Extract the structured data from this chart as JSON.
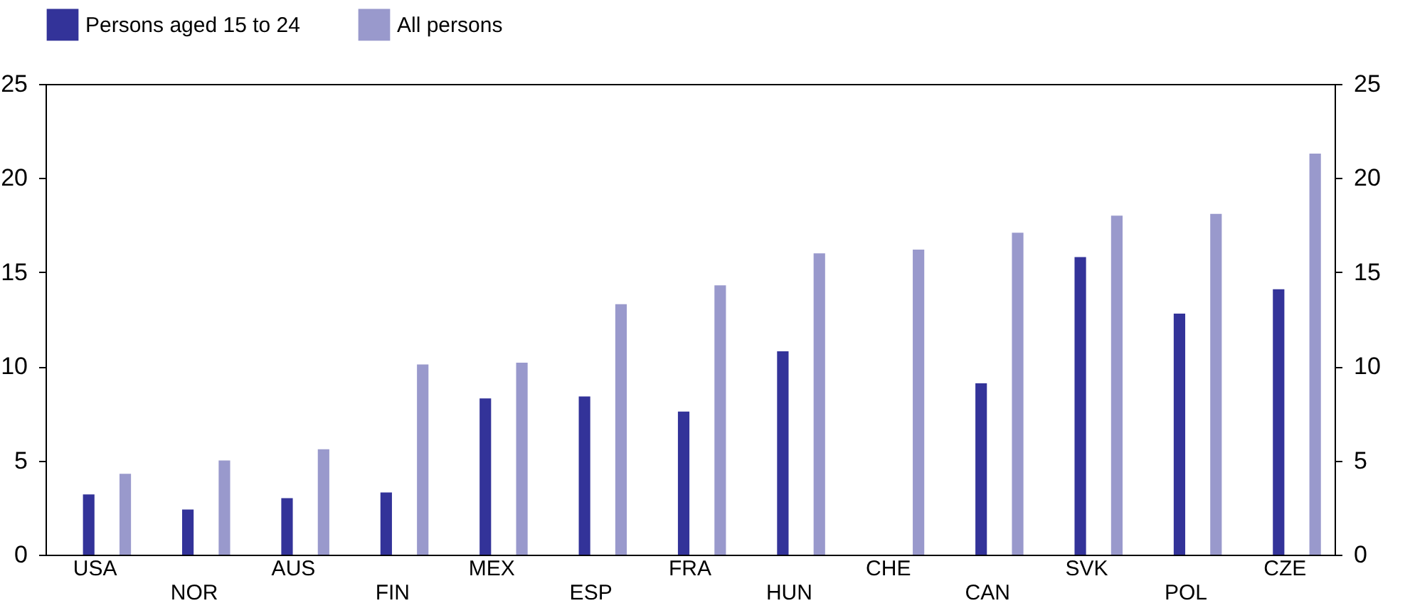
{
  "chart_data": {
    "type": "bar",
    "categories": [
      "USA",
      "NOR",
      "AUS",
      "FIN",
      "MEX",
      "ESP",
      "FRA",
      "HUN",
      "CHE",
      "CAN",
      "SVK",
      "POL",
      "CZE"
    ],
    "series": [
      {
        "name": "Persons aged 15 to 24",
        "color": "#333399",
        "values": [
          3.2,
          2.4,
          3.0,
          3.3,
          8.3,
          8.4,
          7.6,
          10.8,
          null,
          9.1,
          15.8,
          12.8,
          14.1
        ]
      },
      {
        "name": "All persons",
        "color": "#9999cc",
        "values": [
          4.3,
          5.0,
          5.6,
          10.1,
          10.2,
          13.3,
          14.3,
          16.0,
          16.2,
          17.1,
          18.0,
          18.1,
          21.3
        ]
      }
    ],
    "ylim": [
      0,
      25
    ],
    "yticks": [
      0,
      5,
      10,
      15,
      20,
      25
    ],
    "y2lim": [
      0,
      25
    ],
    "y2ticks": [
      0,
      5,
      10,
      15,
      20,
      25
    ],
    "grid": false,
    "legend": "top"
  }
}
